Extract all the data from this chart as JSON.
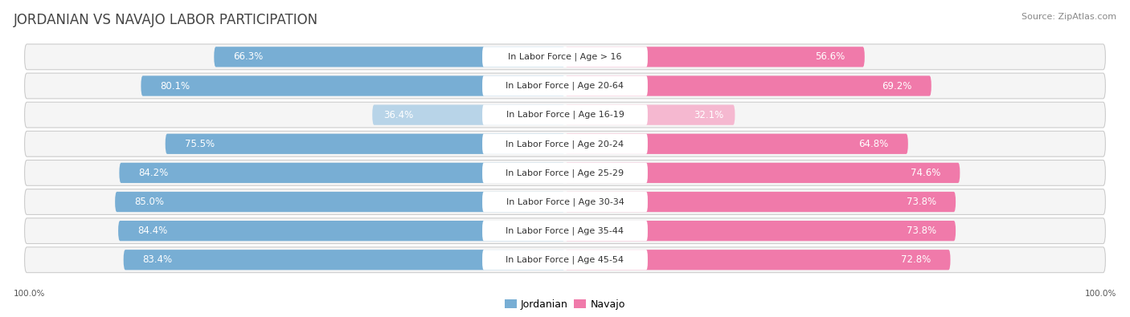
{
  "title": "JORDANIAN VS NAVAJO LABOR PARTICIPATION",
  "source": "Source: ZipAtlas.com",
  "categories": [
    "In Labor Force | Age > 16",
    "In Labor Force | Age 20-64",
    "In Labor Force | Age 16-19",
    "In Labor Force | Age 20-24",
    "In Labor Force | Age 25-29",
    "In Labor Force | Age 30-34",
    "In Labor Force | Age 35-44",
    "In Labor Force | Age 45-54"
  ],
  "jordanian": [
    66.3,
    80.1,
    36.4,
    75.5,
    84.2,
    85.0,
    84.4,
    83.4
  ],
  "navajo": [
    56.6,
    69.2,
    32.1,
    64.8,
    74.6,
    73.8,
    73.8,
    72.8
  ],
  "jordanian_color": "#78aed4",
  "jordanian_color_light": "#b8d4e8",
  "navajo_color": "#f07aaa",
  "navajo_color_light": "#f5b8d0",
  "title_color": "#444444",
  "source_color": "#888888",
  "row_bg_color": "#f0f0f0",
  "row_border_color": "#dddddd",
  "label_font_size": 8.5,
  "category_font_size": 8.0,
  "title_font_size": 12,
  "source_font_size": 8,
  "axis_label_size": 7.5,
  "legend_jordanian": "Jordanian",
  "legend_navajo": "Navajo"
}
